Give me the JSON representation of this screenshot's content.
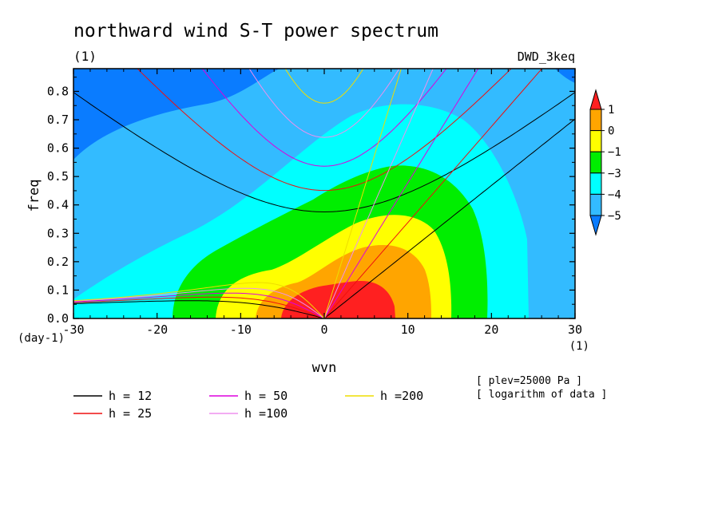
{
  "chart_data": {
    "type": "heatmap",
    "title": "northward wind S-T power spectrum",
    "subtitle_left": "(1)",
    "subtitle_right": "DWD_3keq",
    "xlabel": "wvn",
    "ylabel": "freq",
    "x_unit": "(1)",
    "y_unit": "(day-1)",
    "xlim": [
      -30,
      30
    ],
    "ylim": [
      0,
      0.88
    ],
    "x_ticks": [
      -30,
      -20,
      -10,
      0,
      10,
      20,
      30
    ],
    "y_ticks": [
      0.0,
      0.1,
      0.2,
      0.3,
      0.4,
      0.5,
      0.6,
      0.7,
      0.8
    ],
    "colorbar": {
      "levels": [
        "1",
        "0",
        "-1",
        "-3",
        "-4",
        "-5"
      ],
      "colors": [
        "#ff2020",
        "#ffa500",
        "#ffff00",
        "#00ee00",
        "#00ffff",
        "#33bbff",
        "#0a7cff",
        "#1060ee"
      ]
    },
    "notes": [
      "[ plev=25000 Pa ]",
      "[ logarithm of data ]"
    ],
    "legend": [
      {
        "label": "h = 12",
        "color": "#000000",
        "h": 12
      },
      {
        "label": "h = 25",
        "color": "#ee1010",
        "h": 25
      },
      {
        "label": "h = 50",
        "color": "#dd00dd",
        "h": 50
      },
      {
        "label": "h =100",
        "color": "#ee90ee",
        "h": 100
      },
      {
        "label": "h =200",
        "color": "#eedd00",
        "h": 200
      }
    ]
  }
}
